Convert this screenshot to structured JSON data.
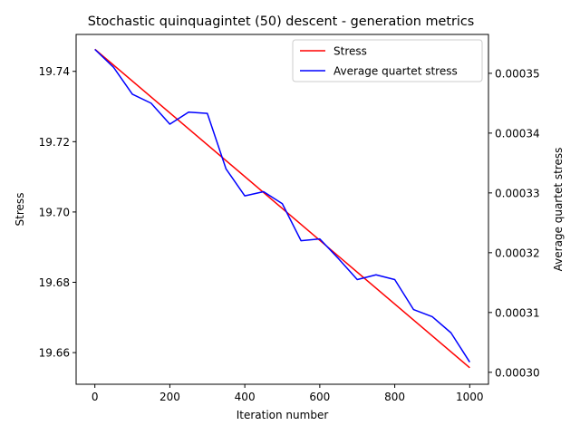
{
  "chart_data": {
    "type": "line",
    "title": "Stochastic quinquagintet (50) descent - generation metrics",
    "xlabel": "Iteration number",
    "ylabel": "Stress",
    "ylabel_right": "Average quartet stress",
    "xlim": [
      -50,
      1050
    ],
    "ylim": [
      19.651,
      19.7505
    ],
    "ylim_right": [
      0.000298,
      0.0003565
    ],
    "xticks": [
      0,
      200,
      400,
      600,
      800,
      1000
    ],
    "xtick_labels": [
      "0",
      "200",
      "400",
      "600",
      "800",
      "1000"
    ],
    "yticks": [
      19.66,
      19.68,
      19.7,
      19.72,
      19.74
    ],
    "ytick_labels": [
      "19.66",
      "19.68",
      "19.70",
      "19.72",
      "19.74"
    ],
    "yticks_right": [
      0.0003,
      0.00031,
      0.00032,
      0.00033,
      0.00034,
      0.00035
    ],
    "ytick_labels_right": [
      "0.00030",
      "0.00031",
      "0.00032",
      "0.00033",
      "0.00034",
      "0.00035"
    ],
    "grid": false,
    "legend_position": "top-right",
    "series": [
      {
        "name": "Stress",
        "axis": "left",
        "color": "#ff0000",
        "x": [
          0,
          1000
        ],
        "y": [
          19.7463,
          19.6557
        ]
      },
      {
        "name": "Average quartet stress",
        "axis": "right",
        "color": "#0000ff",
        "x": [
          0,
          50,
          100,
          150,
          200,
          250,
          300,
          350,
          400,
          450,
          500,
          550,
          600,
          650,
          700,
          750,
          800,
          850,
          900,
          950,
          1000
        ],
        "y": [
          0.000354,
          0.000351,
          0.0003465,
          0.000345,
          0.0003415,
          0.0003435,
          0.0003433,
          0.000334,
          0.0003295,
          0.0003302,
          0.0003282,
          0.000322,
          0.0003223,
          0.000319,
          0.0003155,
          0.0003163,
          0.0003155,
          0.0003105,
          0.0003093,
          0.0003066,
          0.0003017
        ]
      }
    ]
  }
}
